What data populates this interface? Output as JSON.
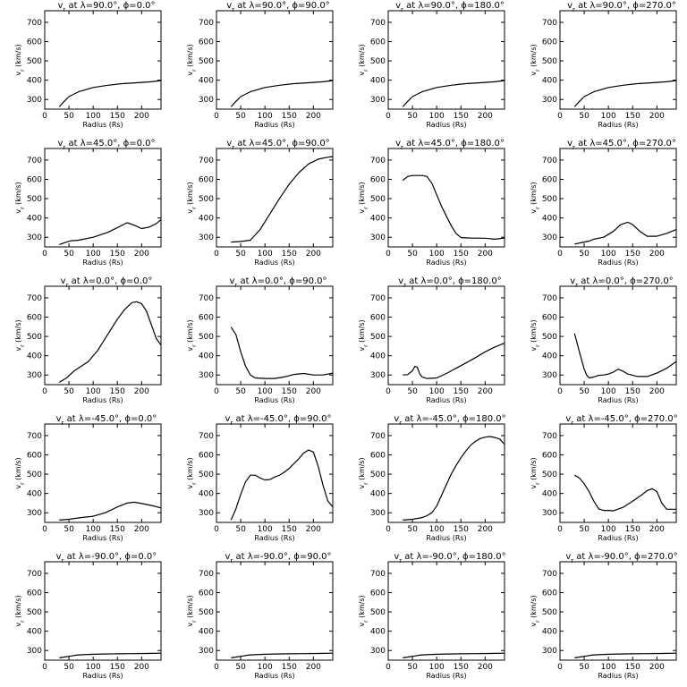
{
  "figure": {
    "background": "#ffffff",
    "line_color": "#000000"
  },
  "chart_data": [
    {
      "type": "line",
      "title_parts": [
        "v",
        "r",
        " at λ=90.0°, ϕ=0.0°"
      ],
      "xlabel": "Radius (Rs)",
      "ylabel": "v",
      "ylabel_sub": "r",
      "ylabel_unit": " (km/s)",
      "xlim": [
        0,
        240
      ],
      "ylim": [
        250,
        760
      ],
      "xticks": [
        0,
        50,
        100,
        150,
        200
      ],
      "yticks": [
        300,
        400,
        500,
        600,
        700
      ],
      "x": [
        30,
        40,
        50,
        70,
        100,
        130,
        160,
        190,
        220,
        240
      ],
      "y": [
        262,
        290,
        315,
        340,
        362,
        374,
        382,
        387,
        392,
        398
      ]
    },
    {
      "type": "line",
      "title_parts": [
        "v",
        "r",
        " at λ=90.0°, ϕ=90.0°"
      ],
      "xlabel": "Radius (Rs)",
      "ylabel": "v",
      "ylabel_sub": "r",
      "ylabel_unit": " (km/s)",
      "xlim": [
        0,
        240
      ],
      "ylim": [
        250,
        760
      ],
      "xticks": [
        0,
        50,
        100,
        150,
        200
      ],
      "yticks": [
        300,
        400,
        500,
        600,
        700
      ],
      "x": [
        30,
        40,
        50,
        70,
        100,
        130,
        160,
        190,
        220,
        240
      ],
      "y": [
        262,
        290,
        315,
        340,
        362,
        374,
        382,
        387,
        392,
        398
      ]
    },
    {
      "type": "line",
      "title_parts": [
        "v",
        "r",
        " at λ=90.0°, ϕ=180.0°"
      ],
      "xlabel": "Radius (Rs)",
      "ylabel": "v",
      "ylabel_sub": "r",
      "ylabel_unit": " (km/s)",
      "xlim": [
        0,
        240
      ],
      "ylim": [
        250,
        760
      ],
      "xticks": [
        0,
        50,
        100,
        150,
        200
      ],
      "yticks": [
        300,
        400,
        500,
        600,
        700
      ],
      "x": [
        30,
        40,
        50,
        70,
        100,
        130,
        160,
        190,
        220,
        240
      ],
      "y": [
        262,
        290,
        315,
        340,
        362,
        374,
        382,
        387,
        392,
        398
      ]
    },
    {
      "type": "line",
      "title_parts": [
        "v",
        "r",
        " at λ=90.0°, ϕ=270.0°"
      ],
      "xlabel": "Radius (Rs)",
      "ylabel": "v",
      "ylabel_sub": "r",
      "ylabel_unit": " (km/s)",
      "xlim": [
        0,
        240
      ],
      "ylim": [
        250,
        760
      ],
      "xticks": [
        0,
        50,
        100,
        150,
        200
      ],
      "yticks": [
        300,
        400,
        500,
        600,
        700
      ],
      "x": [
        30,
        40,
        50,
        70,
        100,
        130,
        160,
        190,
        220,
        240
      ],
      "y": [
        262,
        290,
        315,
        340,
        362,
        374,
        382,
        387,
        392,
        398
      ]
    },
    {
      "type": "line",
      "title_parts": [
        "v",
        "r",
        " at λ=45.0°, ϕ=0.0°"
      ],
      "xlabel": "Radius (Rs)",
      "ylabel": "v",
      "ylabel_sub": "r",
      "ylabel_unit": " (km/s)",
      "xlim": [
        0,
        240
      ],
      "ylim": [
        250,
        760
      ],
      "xticks": [
        0,
        50,
        100,
        150,
        200
      ],
      "yticks": [
        300,
        400,
        500,
        600,
        700
      ],
      "x": [
        30,
        45,
        55,
        70,
        100,
        130,
        150,
        170,
        185,
        200,
        215,
        230,
        240
      ],
      "y": [
        262,
        275,
        282,
        285,
        300,
        325,
        350,
        375,
        362,
        345,
        352,
        370,
        392
      ]
    },
    {
      "type": "line",
      "title_parts": [
        "v",
        "r",
        " at λ=45.0°, ϕ=90.0°"
      ],
      "xlabel": "Radius (Rs)",
      "ylabel": "v",
      "ylabel_sub": "r",
      "ylabel_unit": " (km/s)",
      "xlim": [
        0,
        240
      ],
      "ylim": [
        250,
        760
      ],
      "xticks": [
        0,
        50,
        100,
        150,
        200
      ],
      "yticks": [
        300,
        400,
        500,
        600,
        700
      ],
      "x": [
        30,
        50,
        70,
        90,
        110,
        130,
        150,
        170,
        190,
        210,
        230,
        240
      ],
      "y": [
        275,
        278,
        285,
        340,
        420,
        500,
        575,
        635,
        680,
        705,
        715,
        718
      ]
    },
    {
      "type": "line",
      "title_parts": [
        "v",
        "r",
        " at λ=45.0°, ϕ=180.0°"
      ],
      "xlabel": "Radius (Rs)",
      "ylabel": "v",
      "ylabel_sub": "r",
      "ylabel_unit": " (km/s)",
      "xlim": [
        0,
        240
      ],
      "ylim": [
        250,
        760
      ],
      "xticks": [
        0,
        50,
        100,
        150,
        200
      ],
      "yticks": [
        300,
        400,
        500,
        600,
        700
      ],
      "x": [
        30,
        40,
        50,
        60,
        70,
        80,
        90,
        100,
        110,
        120,
        130,
        140,
        150,
        170,
        200,
        220,
        240
      ],
      "y": [
        595,
        615,
        620,
        620,
        620,
        615,
        580,
        520,
        460,
        410,
        360,
        320,
        298,
        296,
        295,
        290,
        296
      ]
    },
    {
      "type": "line",
      "title_parts": [
        "v",
        "r",
        " at λ=45.0°, ϕ=270.0°"
      ],
      "xlabel": "Radius (Rs)",
      "ylabel": "v",
      "ylabel_sub": "r",
      "ylabel_unit": " (km/s)",
      "xlim": [
        0,
        240
      ],
      "ylim": [
        250,
        760
      ],
      "xticks": [
        0,
        50,
        100,
        150,
        200
      ],
      "yticks": [
        300,
        400,
        500,
        600,
        700
      ],
      "x": [
        30,
        50,
        60,
        70,
        90,
        110,
        125,
        140,
        150,
        165,
        180,
        200,
        220,
        240
      ],
      "y": [
        265,
        275,
        280,
        290,
        300,
        330,
        365,
        378,
        365,
        330,
        305,
        305,
        320,
        340
      ]
    },
    {
      "type": "line",
      "title_parts": [
        "v",
        "r",
        " at λ=0.0°, ϕ=0.0°"
      ],
      "xlabel": "Radius (Rs)",
      "ylabel": "v",
      "ylabel_sub": "r",
      "ylabel_unit": " (km/s)",
      "xlim": [
        0,
        240
      ],
      "ylim": [
        250,
        760
      ],
      "xticks": [
        0,
        50,
        100,
        150,
        200
      ],
      "yticks": [
        300,
        400,
        500,
        600,
        700
      ],
      "x": [
        30,
        45,
        60,
        75,
        90,
        110,
        130,
        150,
        165,
        180,
        190,
        200,
        210,
        220,
        230,
        240
      ],
      "y": [
        262,
        285,
        320,
        345,
        370,
        430,
        510,
        590,
        640,
        675,
        680,
        670,
        630,
        560,
        490,
        455
      ]
    },
    {
      "type": "line",
      "title_parts": [
        "v",
        "r",
        " at λ=0.0°, ϕ=90.0°"
      ],
      "xlabel": "Radius (Rs)",
      "ylabel": "v",
      "ylabel_sub": "r",
      "ylabel_unit": " (km/s)",
      "xlim": [
        0,
        240
      ],
      "ylim": [
        250,
        760
      ],
      "xticks": [
        0,
        50,
        100,
        150,
        200
      ],
      "yticks": [
        300,
        400,
        500,
        600,
        700
      ],
      "x": [
        30,
        40,
        50,
        60,
        70,
        80,
        100,
        120,
        140,
        160,
        180,
        200,
        220,
        240
      ],
      "y": [
        548,
        510,
        420,
        345,
        300,
        285,
        282,
        282,
        290,
        303,
        308,
        300,
        300,
        310
      ]
    },
    {
      "type": "line",
      "title_parts": [
        "v",
        "r",
        " at λ=0.0°, ϕ=180.0°"
      ],
      "xlabel": "Radius (Rs)",
      "ylabel": "v",
      "ylabel_sub": "r",
      "ylabel_unit": " (km/s)",
      "xlim": [
        0,
        240
      ],
      "ylim": [
        250,
        760
      ],
      "xticks": [
        0,
        50,
        100,
        150,
        200
      ],
      "yticks": [
        300,
        400,
        500,
        600,
        700
      ],
      "x": [
        30,
        40,
        50,
        55,
        60,
        65,
        70,
        80,
        100,
        120,
        140,
        160,
        180,
        200,
        220,
        240
      ],
      "y": [
        300,
        302,
        322,
        345,
        340,
        305,
        290,
        282,
        285,
        308,
        335,
        362,
        390,
        420,
        445,
        465
      ]
    },
    {
      "type": "line",
      "title_parts": [
        "v",
        "r",
        " at λ=0.0°, ϕ=270.0°"
      ],
      "xlabel": "Radius (Rs)",
      "ylabel": "v",
      "ylabel_sub": "r",
      "ylabel_unit": " (km/s)",
      "xlim": [
        0,
        240
      ],
      "ylim": [
        250,
        760
      ],
      "xticks": [
        0,
        50,
        100,
        150,
        200
      ],
      "yticks": [
        300,
        400,
        500,
        600,
        700
      ],
      "x": [
        30,
        40,
        50,
        55,
        60,
        70,
        80,
        90,
        100,
        110,
        120,
        130,
        140,
        160,
        180,
        200,
        220,
        240
      ],
      "y": [
        515,
        420,
        330,
        300,
        285,
        290,
        298,
        300,
        305,
        315,
        330,
        320,
        305,
        292,
        292,
        310,
        335,
        370
      ]
    },
    {
      "type": "line",
      "title_parts": [
        "v",
        "r",
        " at λ=-45.0°, ϕ=0.0°"
      ],
      "xlabel": "Radius (Rs)",
      "ylabel": "v",
      "ylabel_sub": "r",
      "ylabel_unit": " (km/s)",
      "xlim": [
        0,
        240
      ],
      "ylim": [
        250,
        760
      ],
      "xticks": [
        0,
        50,
        100,
        150,
        200
      ],
      "yticks": [
        300,
        400,
        500,
        600,
        700
      ],
      "x": [
        30,
        50,
        75,
        100,
        125,
        150,
        170,
        185,
        200,
        220,
        240
      ],
      "y": [
        262,
        266,
        275,
        282,
        300,
        330,
        350,
        355,
        348,
        338,
        325
      ]
    },
    {
      "type": "line",
      "title_parts": [
        "v",
        "r",
        " at λ=-45.0°, ϕ=90.0°"
      ],
      "xlabel": "Radius (Rs)",
      "ylabel": "v",
      "ylabel_sub": "r",
      "ylabel_unit": " (km/s)",
      "xlim": [
        0,
        240
      ],
      "ylim": [
        250,
        760
      ],
      "xticks": [
        0,
        50,
        100,
        150,
        200
      ],
      "yticks": [
        300,
        400,
        500,
        600,
        700
      ],
      "x": [
        30,
        40,
        50,
        60,
        70,
        80,
        90,
        100,
        110,
        120,
        130,
        140,
        150,
        160,
        170,
        180,
        190,
        200,
        210,
        220,
        230,
        240
      ],
      "y": [
        262,
        320,
        395,
        460,
        495,
        495,
        480,
        470,
        472,
        485,
        495,
        510,
        530,
        555,
        580,
        610,
        625,
        615,
        540,
        440,
        360,
        330
      ]
    },
    {
      "type": "line",
      "title_parts": [
        "v",
        "r",
        " at λ=-45.0°, ϕ=180.0°"
      ],
      "xlabel": "Radius (Rs)",
      "ylabel": "v",
      "ylabel_sub": "r",
      "ylabel_unit": " (km/s)",
      "xlim": [
        0,
        240
      ],
      "ylim": [
        250,
        760
      ],
      "xticks": [
        0,
        50,
        100,
        150,
        200
      ],
      "yticks": [
        300,
        400,
        500,
        600,
        700
      ],
      "x": [
        30,
        50,
        70,
        80,
        90,
        100,
        110,
        120,
        130,
        140,
        150,
        160,
        170,
        180,
        190,
        200,
        210,
        220,
        230,
        240
      ],
      "y": [
        262,
        266,
        275,
        285,
        300,
        335,
        390,
        445,
        500,
        545,
        585,
        620,
        650,
        670,
        685,
        692,
        695,
        690,
        682,
        655
      ]
    },
    {
      "type": "line",
      "title_parts": [
        "v",
        "r",
        " at λ=-45.0°, ϕ=270.0°"
      ],
      "xlabel": "Radius (Rs)",
      "ylabel": "v",
      "ylabel_sub": "r",
      "ylabel_unit": " (km/s)",
      "xlim": [
        0,
        240
      ],
      "ylim": [
        250,
        760
      ],
      "xticks": [
        0,
        50,
        100,
        150,
        200
      ],
      "yticks": [
        300,
        400,
        500,
        600,
        700
      ],
      "x": [
        30,
        40,
        50,
        60,
        70,
        80,
        90,
        100,
        110,
        130,
        150,
        170,
        180,
        190,
        200,
        210,
        220,
        240
      ],
      "y": [
        495,
        480,
        450,
        410,
        360,
        320,
        312,
        312,
        310,
        328,
        360,
        395,
        415,
        425,
        410,
        350,
        318,
        318
      ]
    },
    {
      "type": "line",
      "title_parts": [
        "v",
        "r",
        " at λ=-90.0°, ϕ=0.0°"
      ],
      "xlabel": "Radius (Rs)",
      "ylabel": "v",
      "ylabel_sub": "r",
      "ylabel_unit": " (km/s)",
      "xlim": [
        0,
        240
      ],
      "ylim": [
        250,
        760
      ],
      "xticks": [
        0,
        50,
        100,
        150,
        200
      ],
      "yticks": [
        300,
        400,
        500,
        600,
        700
      ],
      "x": [
        30,
        45,
        55,
        65,
        75,
        95,
        120,
        150,
        180,
        210,
        240
      ],
      "y": [
        262,
        268,
        272,
        276,
        278,
        280,
        282,
        283,
        284,
        285,
        286
      ]
    },
    {
      "type": "line",
      "title_parts": [
        "v",
        "r",
        " at λ=-90.0°, ϕ=90.0°"
      ],
      "xlabel": "Radius (Rs)",
      "ylabel": "v",
      "ylabel_sub": "r",
      "ylabel_unit": " (km/s)",
      "xlim": [
        0,
        240
      ],
      "ylim": [
        250,
        760
      ],
      "xticks": [
        0,
        50,
        100,
        150,
        200
      ],
      "yticks": [
        300,
        400,
        500,
        600,
        700
      ],
      "x": [
        30,
        45,
        55,
        65,
        75,
        95,
        120,
        150,
        180,
        210,
        240
      ],
      "y": [
        262,
        268,
        272,
        276,
        278,
        280,
        282,
        283,
        284,
        285,
        286
      ]
    },
    {
      "type": "line",
      "title_parts": [
        "v",
        "r",
        " at λ=-90.0°, ϕ=180.0°"
      ],
      "xlabel": "Radius (Rs)",
      "ylabel": "v",
      "ylabel_sub": "r",
      "ylabel_unit": " (km/s)",
      "xlim": [
        0,
        240
      ],
      "ylim": [
        250,
        760
      ],
      "xticks": [
        0,
        50,
        100,
        150,
        200
      ],
      "yticks": [
        300,
        400,
        500,
        600,
        700
      ],
      "x": [
        30,
        45,
        55,
        65,
        75,
        95,
        120,
        150,
        180,
        210,
        240
      ],
      "y": [
        262,
        268,
        272,
        276,
        278,
        280,
        282,
        283,
        284,
        285,
        286
      ]
    },
    {
      "type": "line",
      "title_parts": [
        "v",
        "r",
        " at λ=-90.0°, ϕ=270.0°"
      ],
      "xlabel": "Radius (Rs)",
      "ylabel": "v",
      "ylabel_sub": "r",
      "ylabel_unit": " (km/s)",
      "xlim": [
        0,
        240
      ],
      "ylim": [
        250,
        760
      ],
      "xticks": [
        0,
        50,
        100,
        150,
        200
      ],
      "yticks": [
        300,
        400,
        500,
        600,
        700
      ],
      "x": [
        30,
        45,
        55,
        65,
        75,
        95,
        120,
        150,
        180,
        210,
        240
      ],
      "y": [
        262,
        268,
        272,
        276,
        278,
        280,
        282,
        283,
        284,
        285,
        286
      ]
    }
  ]
}
